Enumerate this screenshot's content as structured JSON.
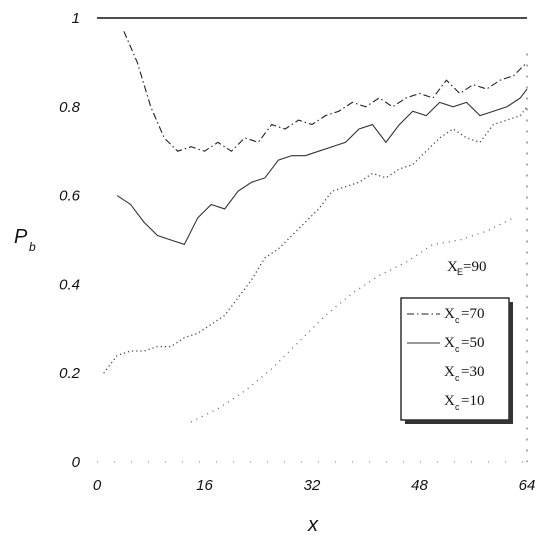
{
  "chart_data": {
    "type": "line",
    "title": "",
    "xlabel": "x",
    "ylabel": "P",
    "ylabel_sub": "b",
    "xlim": [
      0,
      64
    ],
    "ylim": [
      0,
      1
    ],
    "xticks": [
      0,
      16,
      32,
      48,
      64
    ],
    "yticks": [
      0,
      0.2,
      0.4,
      0.6,
      0.8,
      1
    ],
    "ytick_labels": [
      "0",
      "0.2",
      "0.4",
      "0.6",
      "0.8",
      "1"
    ],
    "grid": false,
    "legend_position": "right",
    "legend_note": {
      "main": "X",
      "sub": "E",
      "value": "=90"
    },
    "series": [
      {
        "name": "X_c=90",
        "style": "solid",
        "color": "#111111",
        "x": [
          0,
          64
        ],
        "y": [
          1,
          1
        ]
      },
      {
        "label_main": "X",
        "label_sub": "c",
        "label_value": "=70",
        "style": "dashdot",
        "color": "#222222",
        "x": [
          4,
          6,
          8,
          10,
          12,
          14,
          16,
          18,
          20,
          22,
          24,
          26,
          28,
          30,
          32,
          34,
          36,
          38,
          40,
          42,
          44,
          46,
          48,
          50,
          52,
          54,
          56,
          58,
          60,
          62,
          64
        ],
        "y": [
          0.97,
          0.9,
          0.8,
          0.73,
          0.7,
          0.71,
          0.7,
          0.72,
          0.7,
          0.73,
          0.72,
          0.76,
          0.75,
          0.77,
          0.76,
          0.78,
          0.79,
          0.81,
          0.8,
          0.82,
          0.8,
          0.82,
          0.83,
          0.82,
          0.86,
          0.83,
          0.85,
          0.84,
          0.86,
          0.87,
          0.9
        ]
      },
      {
        "label_main": "X",
        "label_sub": "c",
        "label_value": "=50",
        "style": "solid-thin",
        "color": "#333333",
        "x": [
          3,
          5,
          7,
          9,
          11,
          13,
          15,
          17,
          19,
          21,
          23,
          25,
          27,
          29,
          31,
          33,
          35,
          37,
          39,
          41,
          43,
          45,
          47,
          49,
          51,
          53,
          55,
          57,
          59,
          61,
          63,
          64
        ],
        "y": [
          0.6,
          0.58,
          0.54,
          0.51,
          0.5,
          0.49,
          0.55,
          0.58,
          0.57,
          0.61,
          0.63,
          0.64,
          0.68,
          0.69,
          0.69,
          0.7,
          0.71,
          0.72,
          0.75,
          0.76,
          0.72,
          0.76,
          0.79,
          0.78,
          0.81,
          0.8,
          0.81,
          0.78,
          0.79,
          0.8,
          0.82,
          0.84
        ]
      },
      {
        "label_main": "X",
        "label_sub": "c",
        "label_value": "=30",
        "style": "dotted",
        "color": "#444444",
        "x": [
          1,
          3,
          5,
          7,
          9,
          11,
          13,
          15,
          17,
          19,
          21,
          23,
          25,
          27,
          29,
          31,
          33,
          35,
          37,
          39,
          41,
          43,
          45,
          47,
          49,
          51,
          53,
          55,
          57,
          59,
          61,
          63,
          64
        ],
        "y": [
          0.2,
          0.24,
          0.25,
          0.25,
          0.26,
          0.26,
          0.28,
          0.29,
          0.31,
          0.33,
          0.37,
          0.41,
          0.46,
          0.48,
          0.51,
          0.54,
          0.57,
          0.61,
          0.62,
          0.63,
          0.65,
          0.64,
          0.66,
          0.67,
          0.7,
          0.73,
          0.75,
          0.73,
          0.72,
          0.76,
          0.77,
          0.78,
          0.8
        ]
      },
      {
        "label_main": "X",
        "label_sub": "c",
        "label_value": "=10",
        "style": "sparse-dotted",
        "color": "#666666",
        "x": [
          14,
          18,
          22,
          26,
          30,
          34,
          38,
          42,
          46,
          50,
          54,
          58,
          62,
          64
        ],
        "y": [
          0.09,
          0.12,
          0.16,
          0.21,
          0.27,
          0.33,
          0.38,
          0.42,
          0.45,
          0.49,
          0.5,
          0.52,
          0.55,
          0.1
        ]
      }
    ]
  }
}
